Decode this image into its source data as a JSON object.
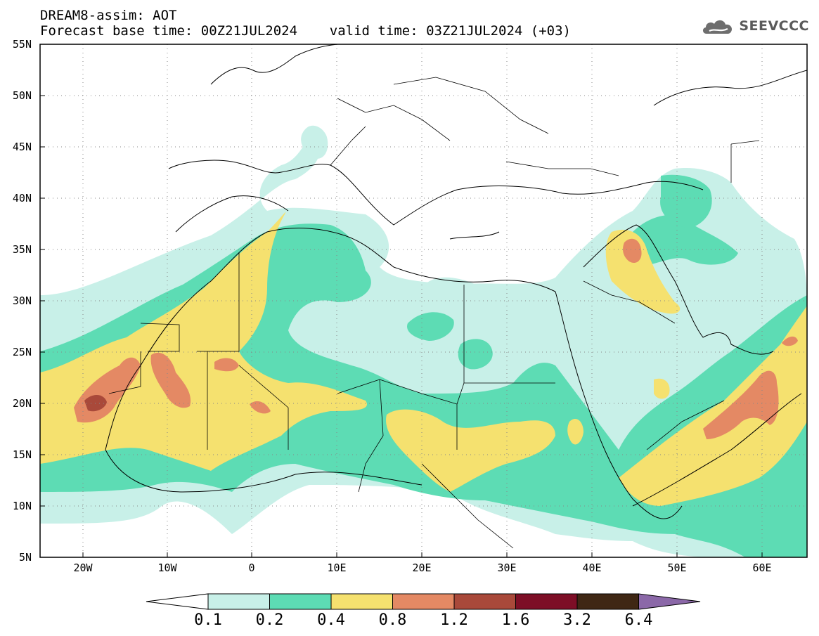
{
  "header": {
    "title": "DREAM8-assim: AOT",
    "time_line": "Forecast base time: 00Z21JUL2024    valid time: 03Z21JUL2024 (+03)"
  },
  "logo": {
    "text": "SEEVCCC",
    "icon": "cloud-icon"
  },
  "map": {
    "lat_ticks": [
      "55N",
      "50N",
      "45N",
      "40N",
      "35N",
      "30N",
      "25N",
      "20N",
      "15N",
      "10N",
      "5N"
    ],
    "lon_ticks": [
      "20W",
      "10W",
      "0",
      "10E",
      "20E",
      "30E",
      "40E",
      "50E",
      "60E"
    ],
    "lat_range": [
      5,
      55
    ],
    "lon_range": [
      -25,
      65
    ],
    "grid": "dotted"
  },
  "colorbar": {
    "levels": [
      "0.1",
      "0.2",
      "0.4",
      "0.8",
      "1.2",
      "1.6",
      "3.2",
      "6.4"
    ],
    "colors": [
      "#c8f0e8",
      "#5ddcb4",
      "#f5e16f",
      "#e48964",
      "#a9493a",
      "#7d0e26",
      "#3f2714",
      "#8b68a8"
    ]
  },
  "field_colors": {
    "c1": "#c8f0e8",
    "c2": "#5ddcb4",
    "c3": "#f5e16f",
    "c4": "#e48964",
    "c5": "#a9493a"
  }
}
